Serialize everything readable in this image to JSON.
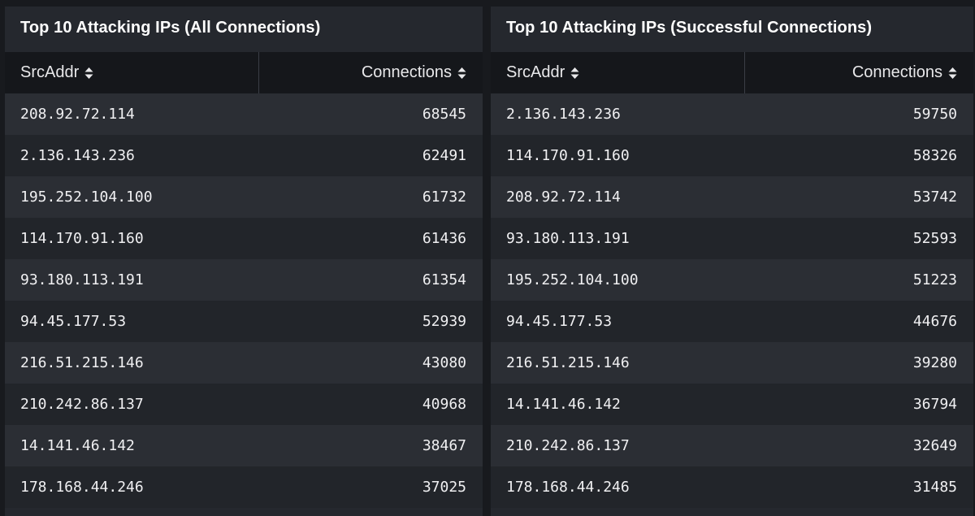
{
  "panels": [
    {
      "title": "Top 10 Attacking IPs (All Connections)",
      "columns": {
        "src": "SrcAddr",
        "count": "Connections"
      },
      "rows": [
        {
          "ip": "208.92.72.114",
          "count": "68545"
        },
        {
          "ip": "2.136.143.236",
          "count": "62491"
        },
        {
          "ip": "195.252.104.100",
          "count": "61732"
        },
        {
          "ip": "114.170.91.160",
          "count": "61436"
        },
        {
          "ip": "93.180.113.191",
          "count": "61354"
        },
        {
          "ip": "94.45.177.53",
          "count": "52939"
        },
        {
          "ip": "216.51.215.146",
          "count": "43080"
        },
        {
          "ip": "210.242.86.137",
          "count": "40968"
        },
        {
          "ip": "14.141.46.142",
          "count": "38467"
        },
        {
          "ip": "178.168.44.246",
          "count": "37025"
        }
      ]
    },
    {
      "title": "Top 10 Attacking IPs (Successful Connections)",
      "columns": {
        "src": "SrcAddr",
        "count": "Connections"
      },
      "rows": [
        {
          "ip": "2.136.143.236",
          "count": "59750"
        },
        {
          "ip": "114.170.91.160",
          "count": "58326"
        },
        {
          "ip": "208.92.72.114",
          "count": "53742"
        },
        {
          "ip": "93.180.113.191",
          "count": "52593"
        },
        {
          "ip": "195.252.104.100",
          "count": "51223"
        },
        {
          "ip": "94.45.177.53",
          "count": "44676"
        },
        {
          "ip": "216.51.215.146",
          "count": "39280"
        },
        {
          "ip": "14.141.46.142",
          "count": "36794"
        },
        {
          "ip": "210.242.86.137",
          "count": "32649"
        },
        {
          "ip": "178.168.44.246",
          "count": "31485"
        }
      ]
    }
  ],
  "icons": {
    "sort": "sort-updown-icon"
  },
  "colors": {
    "page_background": "#181a1e",
    "panel_background": "#25282e",
    "header_background": "#15171b",
    "row_odd": "#2b2e34",
    "row_even": "#22252a",
    "text": "#f0f0f2"
  }
}
